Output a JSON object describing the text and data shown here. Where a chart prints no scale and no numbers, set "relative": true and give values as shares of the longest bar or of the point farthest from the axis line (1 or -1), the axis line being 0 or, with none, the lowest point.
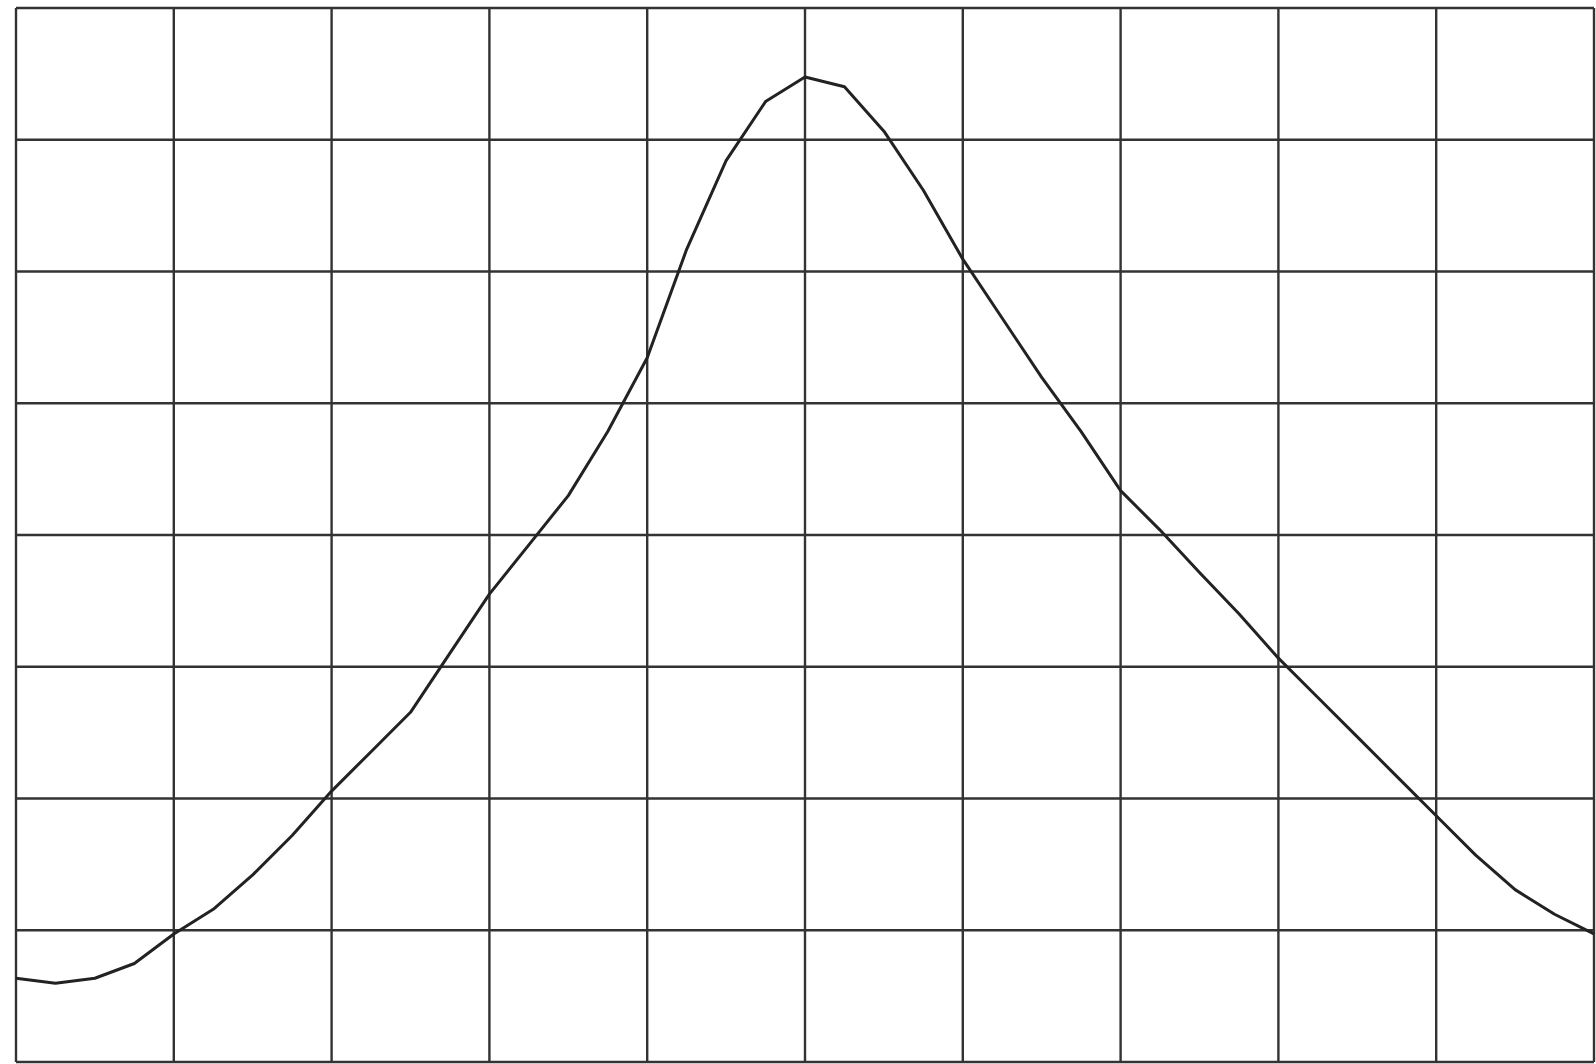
{
  "chart_data": {
    "type": "line",
    "relative": true,
    "grid": true,
    "legend": false,
    "marker": "none",
    "line_style": "solid",
    "categories": [
      null,
      null,
      null,
      null,
      null,
      null,
      null,
      null,
      null,
      null,
      null,
      null,
      null,
      null,
      null,
      null,
      null,
      null,
      null,
      null,
      null,
      null,
      null,
      null,
      null,
      null,
      null,
      null,
      null,
      null,
      null,
      null,
      null,
      null,
      null,
      null,
      null,
      null,
      null,
      null,
      null
    ],
    "series": [
      {
        "color": "#222222",
        "values": [
          0.085,
          0.08,
          0.085,
          0.1,
          0.13,
          0.155,
          0.19,
          0.23,
          0.275,
          0.315,
          0.355,
          0.415,
          0.475,
          0.525,
          0.575,
          0.64,
          0.715,
          0.825,
          0.915,
          0.975,
          1,
          0.99,
          0.945,
          0.885,
          0.815,
          0.755,
          0.695,
          0.64,
          0.58,
          0.54,
          0.497,
          0.455,
          0.41,
          0.37,
          0.33,
          0.29,
          0.25,
          0.21,
          0.175,
          0.15,
          0.13
        ]
      }
    ]
  }
}
